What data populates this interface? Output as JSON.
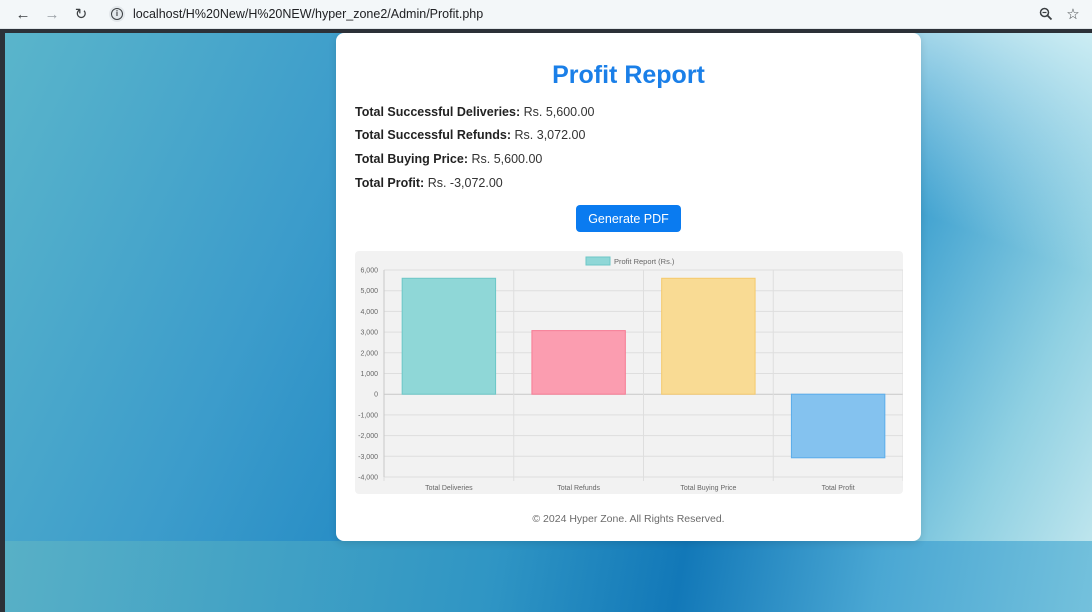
{
  "browser": {
    "url": "localhost/H%20New/H%20NEW/hyper_zone2/Admin/Profit.php",
    "back_icon": "←",
    "forward_icon": "→",
    "reload_icon": "↻",
    "zoom_icon": "zoom-icon",
    "star_icon": "☆"
  },
  "report": {
    "title": "Profit Report",
    "stats": [
      {
        "label": "Total Successful Deliveries:",
        "value": "Rs. 5,600.00"
      },
      {
        "label": "Total Successful Refunds:",
        "value": "Rs. 3,072.00"
      },
      {
        "label": "Total Buying Price:",
        "value": "Rs. 5,600.00"
      },
      {
        "label": "Total Profit:",
        "value": "Rs. -3,072.00"
      }
    ],
    "generate_pdf_label": "Generate PDF",
    "footer": "© 2024 Hyper Zone. All Rights Reserved."
  },
  "chart_data": {
    "type": "bar",
    "legend": "Profit Report (Rs.)",
    "legend_position": "top",
    "categories": [
      "Total Deliveries",
      "Total Refunds",
      "Total Buying Price",
      "Total Profit"
    ],
    "values": [
      5600,
      3072,
      5600,
      -3072
    ],
    "ylim": [
      -4000,
      6000
    ],
    "yticks": [
      "6,000",
      "5,000",
      "4,000",
      "3,000",
      "2,000",
      "1,000",
      "0",
      "-1,000",
      "-2,000",
      "-3,000",
      "-4,000"
    ],
    "colors": [
      "#8fd7d7",
      "#fb9db0",
      "#f9db94",
      "#84c2ef"
    ],
    "borders": [
      "#6cc7c7",
      "#f77a93",
      "#f5c96b",
      "#5aacea"
    ],
    "legend_color": "#8fd7d7",
    "grid": true
  }
}
